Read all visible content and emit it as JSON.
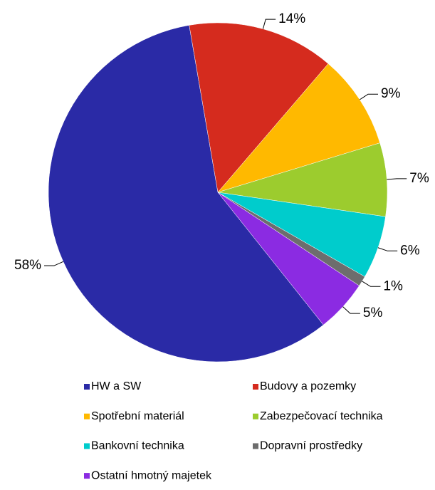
{
  "chart_data": {
    "type": "pie",
    "categories": [
      "HW a SW",
      "Budovy a pozemky",
      "Spotřební materiál",
      "Zabezpečovací technika",
      "Bankovní technika",
      "Dopravní prostředky",
      "Ostatní hmotný majetek"
    ],
    "values": [
      58,
      14,
      9,
      7,
      6,
      1,
      5
    ],
    "value_labels": [
      "58%",
      "14%",
      "9%",
      "7%",
      "6%",
      "1%",
      "5%"
    ],
    "colors": [
      "#2a2aa6",
      "#d52b1e",
      "#ffb900",
      "#9ccc2e",
      "#00cccc",
      "#6d6d6d",
      "#8b2be2"
    ],
    "legend": "bottom"
  }
}
